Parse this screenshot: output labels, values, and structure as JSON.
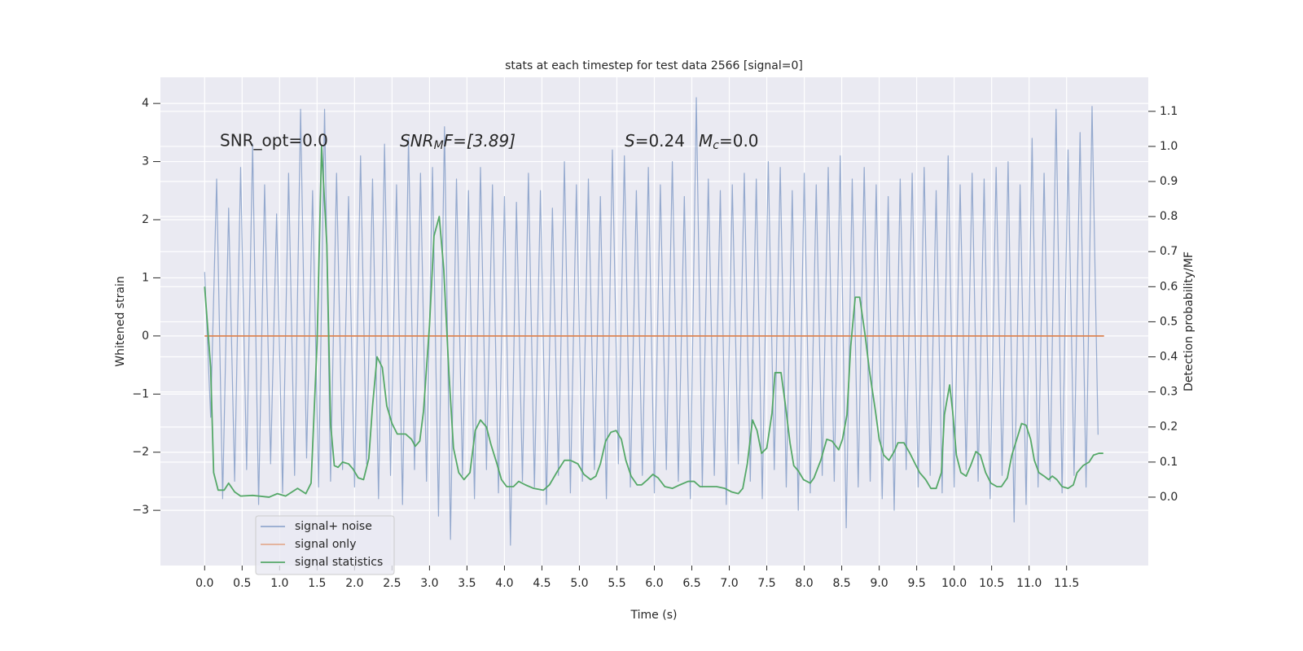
{
  "chart_data": {
    "type": "line",
    "title": "stats at each timestep for test data 2566 [signal=0]",
    "xlabel": "Time (s)",
    "ylabel": "Whitened strain",
    "y2label": "Detection probability/MF",
    "annotations": [
      "SNR_opt=0.0",
      [
        "SNR",
        "M",
        "F=[3.89]"
      ],
      [
        "S",
        "=0.24",
        "M",
        "c",
        "=0.0"
      ]
    ],
    "xlim": [
      -0.59,
      12.59
    ],
    "ylim": [
      -3.95,
      4.45
    ],
    "y2lim": [
      -0.195,
      1.197
    ],
    "xticks": [
      {
        "value": 0,
        "label": "0.0"
      },
      0.5,
      {
        "value": 1,
        "label": "1.0"
      },
      1.5,
      {
        "value": 2,
        "label": "2.0"
      },
      2.5,
      {
        "value": 3,
        "label": "3.0"
      },
      3.5,
      {
        "value": 4,
        "label": "4.0"
      },
      4.5,
      {
        "value": 5,
        "label": "5.0"
      },
      5.5,
      {
        "value": 6,
        "label": "6.0"
      },
      6.5,
      {
        "value": 7,
        "label": "7.0"
      },
      7.5,
      {
        "value": 8,
        "label": "8.0"
      },
      8.5,
      {
        "value": 9,
        "label": "9.0"
      },
      9.5,
      {
        "value": 10,
        "label": "10.0"
      },
      10.5,
      {
        "value": 11,
        "label": "11.0"
      },
      11.5
    ],
    "yticks": [
      {
        "value": -3,
        "label": "−3"
      },
      {
        "value": -2,
        "label": "−2"
      },
      {
        "value": -1,
        "label": "−1"
      },
      0,
      1,
      2,
      3,
      4
    ],
    "y2ticks": [
      {
        "value": 0,
        "label": "0.0"
      },
      0.1,
      0.2,
      0.3,
      0.4,
      0.5,
      0.6,
      0.7,
      0.8,
      0.9,
      {
        "value": 1,
        "label": "1.0"
      },
      1.1
    ],
    "grid": true,
    "legend": "lower left",
    "series": [
      {
        "name": "signal+ noise",
        "color": "#4c72b0",
        "x": [
          0,
          0.08,
          0.16,
          0.24,
          0.32,
          0.4,
          0.48,
          0.56,
          0.64,
          0.72,
          0.8,
          0.88,
          0.96,
          1.04,
          1.12,
          1.2,
          1.28,
          1.36,
          1.44,
          1.52,
          1.6,
          1.68,
          1.76,
          1.84,
          1.92,
          2,
          2.08,
          2.16,
          2.24,
          2.32,
          2.4,
          2.48,
          2.56,
          2.64,
          2.72,
          2.8,
          2.88,
          2.96,
          3.04,
          3.12,
          3.2,
          3.28,
          3.36,
          3.44,
          3.52,
          3.6,
          3.68,
          3.76,
          3.84,
          3.92,
          4,
          4.08,
          4.16,
          4.24,
          4.32,
          4.4,
          4.48,
          4.56,
          4.64,
          4.72,
          4.8,
          4.88,
          4.96,
          5.04,
          5.12,
          5.2,
          5.28,
          5.36,
          5.44,
          5.52,
          5.6,
          5.68,
          5.76,
          5.84,
          5.92,
          6,
          6.08,
          6.16,
          6.24,
          6.32,
          6.4,
          6.48,
          6.56,
          6.64,
          6.72,
          6.8,
          6.88,
          6.96,
          7.04,
          7.12,
          7.2,
          7.28,
          7.36,
          7.44,
          7.52,
          7.6,
          7.68,
          7.76,
          7.84,
          7.92,
          8,
          8.08,
          8.16,
          8.24,
          8.32,
          8.4,
          8.48,
          8.56,
          8.64,
          8.72,
          8.8,
          8.88,
          8.96,
          9.04,
          9.12,
          9.2,
          9.28,
          9.36,
          9.44,
          9.52,
          9.6,
          9.68,
          9.76,
          9.84,
          9.92,
          10,
          10.08,
          10.16,
          10.24,
          10.32,
          10.4,
          10.48,
          10.56,
          10.64,
          10.72,
          10.8,
          10.88,
          10.96,
          11.04,
          11.12,
          11.2,
          11.28,
          11.36,
          11.44,
          11.52,
          11.6,
          11.68,
          11.76,
          11.84,
          11.92
        ],
        "values": [
          1.1,
          -1.4,
          2.7,
          -2.8,
          2.2,
          -2.5,
          2.9,
          -2.3,
          3.3,
          -2.9,
          2.6,
          -2.2,
          2.1,
          -2.7,
          2.8,
          -2.4,
          3.9,
          -2.1,
          2.5,
          -2.6,
          3.9,
          -2.5,
          2.8,
          -2.3,
          2.4,
          -2.6,
          3.1,
          -2.2,
          2.7,
          -2.8,
          3.3,
          -2.4,
          2.6,
          -2.9,
          3.4,
          -2.3,
          2.8,
          -2.5,
          2.9,
          -3.1,
          3.6,
          -3.5,
          2.7,
          -2.4,
          2.5,
          -2.8,
          2.9,
          -2.3,
          2.6,
          -2.7,
          2.4,
          -3.6,
          2.3,
          -2.5,
          2.8,
          -2.6,
          2.5,
          -2.9,
          2.2,
          -2.4,
          3.0,
          -2.7,
          2.6,
          -2.5,
          2.7,
          -2.3,
          2.4,
          -2.8,
          3.2,
          -2.2,
          3.1,
          -2.6,
          2.5,
          -2.4,
          2.9,
          -2.7,
          2.6,
          -2.3,
          3.0,
          -2.5,
          2.4,
          -2.8,
          4.1,
          -2.6,
          2.7,
          -2.4,
          2.5,
          -2.9,
          2.6,
          -2.2,
          2.8,
          -2.5,
          2.7,
          -2.8,
          3.0,
          -2.3,
          2.9,
          -2.6,
          2.5,
          -3.0,
          2.8,
          -2.7,
          2.6,
          -2.4,
          2.9,
          -2.5,
          3.1,
          -3.3,
          2.7,
          -2.6,
          2.9,
          -2.5,
          2.6,
          -2.8,
          2.4,
          -3.0,
          2.7,
          -2.3,
          2.8,
          -2.6,
          2.9,
          -2.4,
          2.5,
          -2.7,
          3.1,
          -2.6,
          2.6,
          -2.3,
          2.8,
          -2.5,
          2.7,
          -2.8,
          2.9,
          -2.4,
          3.0,
          -3.2,
          2.6,
          -2.9,
          3.4,
          -2.6,
          2.8,
          -2.5,
          3.9,
          -2.7,
          3.2,
          -2.4,
          3.5,
          -2.6,
          3.95,
          -1.7
        ]
      },
      {
        "name": "signal only",
        "color": "#dd8452",
        "x": [
          0,
          12
        ],
        "values": [
          0,
          0
        ]
      },
      {
        "name": "signal statistics",
        "color": "#55a868",
        "axis": "y2",
        "x": [
          0,
          0.08,
          0.12,
          0.18,
          0.26,
          0.32,
          0.4,
          0.48,
          0.64,
          0.86,
          0.97,
          1.08,
          1.24,
          1.35,
          1.42,
          1.5,
          1.56,
          1.63,
          1.68,
          1.73,
          1.78,
          1.84,
          1.92,
          1.98,
          2.05,
          2.12,
          2.19,
          2.24,
          2.3,
          2.37,
          2.43,
          2.5,
          2.57,
          2.68,
          2.76,
          2.81,
          2.87,
          2.92,
          3.0,
          3.06,
          3.13,
          3.19,
          3.26,
          3.32,
          3.39,
          3.46,
          3.54,
          3.61,
          3.68,
          3.76,
          3.82,
          3.9,
          3.96,
          4.03,
          4.12,
          4.19,
          4.28,
          4.39,
          4.52,
          4.6,
          4.71,
          4.8,
          4.88,
          4.98,
          5.06,
          5.15,
          5.22,
          5.28,
          5.35,
          5.42,
          5.49,
          5.56,
          5.62,
          5.69,
          5.77,
          5.83,
          5.91,
          5.98,
          6.05,
          6.14,
          6.24,
          6.34,
          6.45,
          6.53,
          6.61,
          6.72,
          6.83,
          6.94,
          7.03,
          7.12,
          7.18,
          7.24,
          7.31,
          7.37,
          7.43,
          7.5,
          7.57,
          7.61,
          7.69,
          7.75,
          7.81,
          7.86,
          7.92,
          7.99,
          8.08,
          8.13,
          8.22,
          8.3,
          8.37,
          8.46,
          8.51,
          8.57,
          8.62,
          8.68,
          8.74,
          8.81,
          8.87,
          8.95,
          9.0,
          9.06,
          9.13,
          9.2,
          9.25,
          9.33,
          9.41,
          9.48,
          9.54,
          9.62,
          9.69,
          9.76,
          9.83,
          9.87,
          9.94,
          9.98,
          10.03,
          10.09,
          10.16,
          10.22,
          10.29,
          10.35,
          10.42,
          10.49,
          10.57,
          10.63,
          10.71,
          10.77,
          10.85,
          10.9,
          10.96,
          11.02,
          11.07,
          11.13,
          11.2,
          11.26,
          11.31,
          11.37,
          11.44,
          11.52,
          11.59,
          11.64,
          11.72,
          11.8,
          11.86,
          11.93,
          11.99
        ],
        "values": [
          0.6,
          0.37,
          0.07,
          0.02,
          0.02,
          0.04,
          0.015,
          0.003,
          0.005,
          0.0,
          0.01,
          0.003,
          0.025,
          0.01,
          0.04,
          0.44,
          1.0,
          0.72,
          0.21,
          0.09,
          0.085,
          0.1,
          0.095,
          0.08,
          0.055,
          0.05,
          0.11,
          0.26,
          0.4,
          0.37,
          0.26,
          0.21,
          0.18,
          0.18,
          0.165,
          0.145,
          0.16,
          0.245,
          0.49,
          0.745,
          0.8,
          0.65,
          0.35,
          0.14,
          0.07,
          0.05,
          0.07,
          0.19,
          0.22,
          0.2,
          0.15,
          0.095,
          0.05,
          0.03,
          0.03,
          0.045,
          0.035,
          0.025,
          0.02,
          0.035,
          0.075,
          0.105,
          0.105,
          0.095,
          0.065,
          0.05,
          0.06,
          0.095,
          0.16,
          0.185,
          0.19,
          0.165,
          0.105,
          0.06,
          0.035,
          0.035,
          0.05,
          0.065,
          0.055,
          0.03,
          0.025,
          0.035,
          0.045,
          0.045,
          0.03,
          0.03,
          0.03,
          0.025,
          0.015,
          0.01,
          0.025,
          0.095,
          0.22,
          0.19,
          0.125,
          0.14,
          0.24,
          0.355,
          0.355,
          0.26,
          0.155,
          0.09,
          0.075,
          0.05,
          0.04,
          0.055,
          0.105,
          0.165,
          0.16,
          0.135,
          0.165,
          0.235,
          0.43,
          0.57,
          0.57,
          0.465,
          0.36,
          0.245,
          0.165,
          0.12,
          0.105,
          0.13,
          0.155,
          0.155,
          0.125,
          0.095,
          0.07,
          0.05,
          0.025,
          0.025,
          0.07,
          0.235,
          0.32,
          0.245,
          0.12,
          0.07,
          0.06,
          0.09,
          0.13,
          0.12,
          0.07,
          0.04,
          0.03,
          0.03,
          0.055,
          0.12,
          0.175,
          0.21,
          0.205,
          0.165,
          0.105,
          0.07,
          0.06,
          0.05,
          0.06,
          0.05,
          0.03,
          0.025,
          0.035,
          0.07,
          0.09,
          0.1,
          0.12,
          0.125,
          0.125
        ]
      }
    ]
  }
}
